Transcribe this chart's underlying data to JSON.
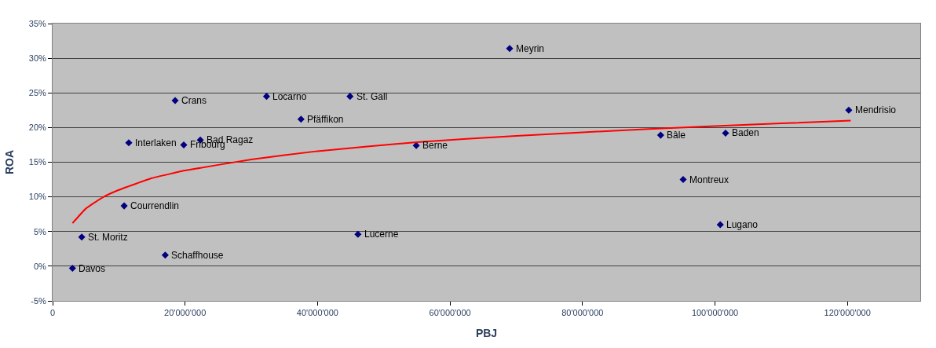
{
  "chart_data": {
    "type": "scatter",
    "xlabel": "PBJ",
    "ylabel": "ROA",
    "x": [
      3000000,
      4400000,
      17000000,
      10800000,
      11500000,
      18500000,
      19800000,
      22300000,
      32300000,
      37500000,
      44900000,
      46100000,
      54900000,
      69000000,
      91800000,
      101600000,
      95200000,
      100800000,
      120200000
    ],
    "series": [
      {
        "color": "#000080",
        "marker": "diamond",
        "values": [
          -0.3,
          4.2,
          1.6,
          8.7,
          17.8,
          23.9,
          17.5,
          18.2,
          24.5,
          21.2,
          24.5,
          4.6,
          17.4,
          31.4,
          18.9,
          19.2,
          12.5,
          6.0,
          22.5
        ]
      },
      {
        "type": "line",
        "color": "#ff0000",
        "marker": "none",
        "line_style": "solid",
        "x": [
          3000000,
          5000000,
          7500000,
          10000000,
          15000000,
          20000000,
          30000000,
          40000000,
          55000000,
          70000000,
          90000000,
          110000000,
          120500000
        ],
        "values": [
          6.2,
          8.3,
          9.9,
          11.0,
          12.7,
          13.8,
          15.4,
          16.6,
          17.9,
          18.8,
          19.8,
          20.6,
          21.0
        ]
      }
    ],
    "annotations": [
      {
        "text": "Davos",
        "x": 3000000,
        "y": -0.3
      },
      {
        "text": "St. Moritz",
        "x": 4400000,
        "y": 4.2
      },
      {
        "text": "Schaffhouse",
        "x": 17000000,
        "y": 1.6
      },
      {
        "text": "Courrendlin",
        "x": 10800000,
        "y": 8.7
      },
      {
        "text": "Interlaken",
        "x": 11500000,
        "y": 17.8
      },
      {
        "text": "Crans",
        "x": 18500000,
        "y": 23.9
      },
      {
        "text": "Fribourg",
        "x": 19800000,
        "y": 17.5
      },
      {
        "text": "Bad Ragaz",
        "x": 22300000,
        "y": 18.2
      },
      {
        "text": "Locarno",
        "x": 32300000,
        "y": 24.5
      },
      {
        "text": "Pfäffikon",
        "x": 37500000,
        "y": 21.2
      },
      {
        "text": "St. Gall",
        "x": 44900000,
        "y": 24.5
      },
      {
        "text": "Lucerne",
        "x": 46100000,
        "y": 4.6
      },
      {
        "text": "Berne",
        "x": 54900000,
        "y": 17.4
      },
      {
        "text": "Meyrin",
        "x": 69000000,
        "y": 31.4
      },
      {
        "text": "Bâle",
        "x": 91800000,
        "y": 18.9
      },
      {
        "text": "Baden",
        "x": 101600000,
        "y": 19.2
      },
      {
        "text": "Montreux",
        "x": 95200000,
        "y": 12.5
      },
      {
        "text": "Lugano",
        "x": 100800000,
        "y": 6.0
      },
      {
        "text": "Mendrisio",
        "x": 120200000,
        "y": 22.5
      }
    ],
    "xlim": [
      0,
      131000000
    ],
    "xticks": [
      0,
      {
        "value": 20000000,
        "label": "20'000'000"
      },
      {
        "value": 40000000,
        "label": "40'000'000"
      },
      {
        "value": 60000000,
        "label": "60'000'000"
      },
      {
        "value": 80000000,
        "label": "80'000'000"
      },
      {
        "value": 100000000,
        "label": "100'000'000"
      },
      {
        "value": 120000000,
        "label": "120'000'000"
      }
    ],
    "ylim": [
      -5,
      35
    ],
    "yticks": [
      {
        "value": -5,
        "label": "-5%"
      },
      {
        "value": 0,
        "label": "0%"
      },
      {
        "value": 5,
        "label": "5%"
      },
      {
        "value": 10,
        "label": "10%"
      },
      {
        "value": 15,
        "label": "15%"
      },
      {
        "value": 20,
        "label": "20%"
      },
      {
        "value": 25,
        "label": "25%"
      },
      {
        "value": 30,
        "label": "30%"
      },
      {
        "value": 35,
        "label": "35%"
      }
    ],
    "grid": "y"
  }
}
